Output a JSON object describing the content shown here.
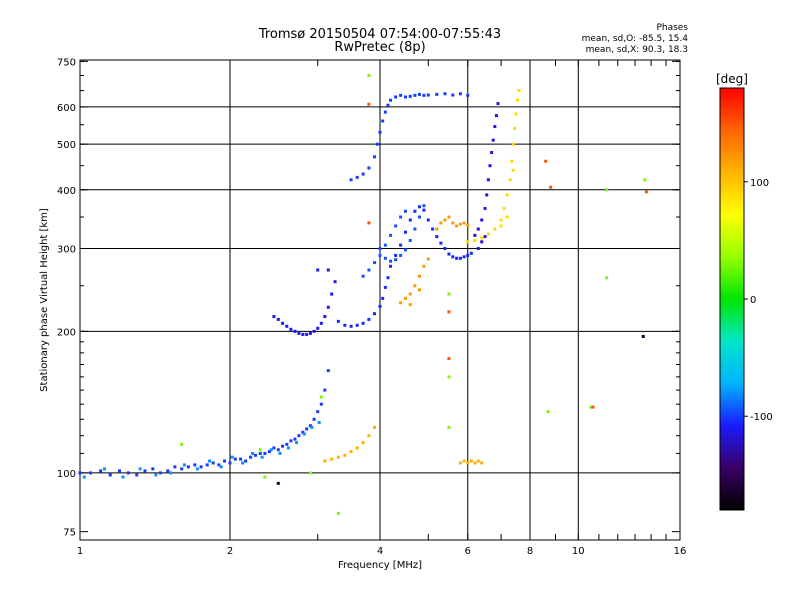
{
  "header": {
    "title_line1": "Tromsø 20150504 07:54:00-07:55:43",
    "title_line2": "RwPretec (8p)",
    "stats_heading": "Phases",
    "stats_o": "mean, sd,O: -85.5, 15.4",
    "stats_x": "mean, sd,X:  90.3, 18.3"
  },
  "colorbar": {
    "unit_label": "[deg]",
    "tick_labels": [
      "100",
      "0",
      "-100"
    ],
    "tick_values": [
      100,
      0,
      -100
    ],
    "range": [
      -180,
      180
    ],
    "colors": [
      "#000000",
      "#3a0066",
      "#1a1aff",
      "#00b4ff",
      "#00e6c8",
      "#00e600",
      "#96ff00",
      "#ffff00",
      "#ffb400",
      "#ff6400",
      "#ff0000"
    ]
  },
  "chart_data": {
    "type": "scatter",
    "xlabel": "Frequency [MHz]",
    "ylabel": "Stationary phase Virtual Height [km]",
    "x_scale": "log2",
    "y_scale": "log",
    "xlim": [
      1,
      16
    ],
    "ylim": [
      72,
      755
    ],
    "x_ticks": [
      1,
      2,
      4,
      6,
      8,
      10,
      16
    ],
    "x_tick_labels": [
      "1",
      "2",
      "4",
      "6",
      "8",
      "10",
      "16"
    ],
    "y_ticks": [
      75,
      100,
      200,
      300,
      400,
      500,
      600,
      750
    ],
    "y_tick_labels": [
      "75",
      "100",
      "200",
      "300",
      "400",
      "500",
      "600",
      "750"
    ],
    "grid": true,
    "legend": "colorbar-right",
    "series": [
      {
        "phase": -100,
        "points": [
          [
            1.0,
            100
          ],
          [
            1.05,
            100
          ],
          [
            1.1,
            101
          ],
          [
            1.15,
            99
          ],
          [
            1.2,
            101
          ],
          [
            1.25,
            100
          ],
          [
            1.3,
            99
          ],
          [
            1.35,
            101
          ],
          [
            1.4,
            102
          ],
          [
            1.45,
            100
          ],
          [
            1.5,
            101
          ],
          [
            1.55,
            103
          ],
          [
            1.6,
            102
          ],
          [
            1.65,
            103
          ],
          [
            1.7,
            104
          ],
          [
            1.75,
            103
          ],
          [
            1.8,
            104
          ],
          [
            1.85,
            105
          ],
          [
            1.9,
            104
          ],
          [
            1.95,
            106
          ],
          [
            2.0,
            105
          ],
          [
            2.05,
            107
          ],
          [
            2.1,
            107
          ],
          [
            2.15,
            106
          ],
          [
            2.2,
            108
          ],
          [
            2.25,
            109
          ],
          [
            2.3,
            110
          ],
          [
            2.35,
            110
          ],
          [
            2.4,
            111
          ],
          [
            2.45,
            113
          ],
          [
            2.5,
            112
          ],
          [
            2.55,
            114
          ],
          [
            2.6,
            115
          ],
          [
            2.65,
            117
          ],
          [
            2.7,
            118
          ],
          [
            2.75,
            120
          ],
          [
            2.8,
            122
          ],
          [
            2.85,
            124
          ],
          [
            2.9,
            126
          ],
          [
            2.95,
            130
          ],
          [
            3.0,
            135
          ],
          [
            3.05,
            140
          ],
          [
            3.1,
            150
          ],
          [
            3.15,
            165
          ]
        ]
      },
      {
        "phase": -80,
        "points": [
          [
            1.02,
            98
          ],
          [
            1.12,
            102
          ],
          [
            1.22,
            98
          ],
          [
            1.32,
            102
          ],
          [
            1.42,
            99
          ],
          [
            1.52,
            100
          ],
          [
            1.62,
            104
          ],
          [
            1.72,
            102
          ],
          [
            1.82,
            106
          ],
          [
            1.92,
            103
          ],
          [
            2.02,
            108
          ],
          [
            2.12,
            105
          ],
          [
            2.22,
            110
          ],
          [
            2.32,
            108
          ],
          [
            2.42,
            112
          ],
          [
            2.52,
            110
          ],
          [
            2.62,
            113
          ],
          [
            2.72,
            116
          ],
          [
            2.82,
            121
          ],
          [
            2.92,
            125
          ],
          [
            3.02,
            128
          ]
        ]
      },
      {
        "phase": -110,
        "points": [
          [
            2.45,
            215
          ],
          [
            2.5,
            212
          ],
          [
            2.55,
            208
          ],
          [
            2.6,
            205
          ],
          [
            2.65,
            202
          ],
          [
            2.7,
            200
          ],
          [
            2.75,
            198
          ],
          [
            2.8,
            197
          ],
          [
            2.85,
            197
          ],
          [
            2.9,
            198
          ],
          [
            2.95,
            200
          ],
          [
            3.0,
            203
          ],
          [
            3.05,
            208
          ],
          [
            3.1,
            215
          ],
          [
            3.15,
            225
          ],
          [
            3.2,
            240
          ],
          [
            3.25,
            255
          ],
          [
            3.15,
            270
          ],
          [
            3.0,
            270
          ]
        ]
      },
      {
        "phase": -105,
        "points": [
          [
            3.3,
            210
          ],
          [
            3.4,
            206
          ],
          [
            3.5,
            205
          ],
          [
            3.6,
            206
          ],
          [
            3.7,
            208
          ],
          [
            3.8,
            212
          ],
          [
            3.9,
            218
          ],
          [
            4.0,
            226
          ],
          [
            4.05,
            235
          ],
          [
            4.1,
            248
          ],
          [
            4.15,
            260
          ],
          [
            4.2,
            275
          ],
          [
            4.3,
            290
          ],
          [
            4.4,
            305
          ],
          [
            4.5,
            325
          ],
          [
            4.6,
            345
          ],
          [
            4.7,
            360
          ],
          [
            4.8,
            368
          ],
          [
            4.9,
            362
          ],
          [
            5.0,
            345
          ],
          [
            5.1,
            330
          ],
          [
            5.2,
            318
          ],
          [
            5.3,
            308
          ],
          [
            5.4,
            300
          ],
          [
            5.5,
            292
          ],
          [
            5.6,
            288
          ],
          [
            5.7,
            286
          ],
          [
            5.8,
            286
          ],
          [
            5.9,
            288
          ],
          [
            6.0,
            290
          ],
          [
            6.1,
            293
          ]
        ]
      },
      {
        "phase": -95,
        "points": [
          [
            4.0,
            290
          ],
          [
            4.1,
            286
          ],
          [
            4.2,
            282
          ],
          [
            4.3,
            284
          ],
          [
            4.4,
            290
          ],
          [
            4.5,
            298
          ],
          [
            4.6,
            312
          ],
          [
            4.7,
            330
          ],
          [
            4.8,
            350
          ],
          [
            4.9,
            370
          ],
          [
            4.0,
            300
          ],
          [
            4.1,
            305
          ],
          [
            4.2,
            320
          ],
          [
            4.3,
            335
          ],
          [
            4.4,
            350
          ],
          [
            4.5,
            360
          ],
          [
            3.9,
            280
          ],
          [
            3.8,
            270
          ],
          [
            3.7,
            262
          ]
        ]
      },
      {
        "phase": -100,
        "points": [
          [
            3.5,
            420
          ],
          [
            3.6,
            425
          ],
          [
            3.7,
            432
          ],
          [
            3.8,
            445
          ],
          [
            3.9,
            470
          ],
          [
            3.95,
            500
          ],
          [
            4.0,
            530
          ],
          [
            4.05,
            560
          ],
          [
            4.1,
            585
          ],
          [
            4.15,
            605
          ],
          [
            4.2,
            620
          ],
          [
            4.3,
            630
          ],
          [
            4.4,
            635
          ],
          [
            4.5,
            630
          ],
          [
            4.6,
            632
          ],
          [
            4.7,
            635
          ],
          [
            4.8,
            638
          ],
          [
            4.9,
            635
          ],
          [
            5.0,
            636
          ],
          [
            5.2,
            638
          ],
          [
            5.4,
            640
          ],
          [
            5.6,
            636
          ],
          [
            5.8,
            640
          ],
          [
            6.0,
            635
          ]
        ]
      },
      {
        "phase": -115,
        "points": [
          [
            6.2,
            320
          ],
          [
            6.3,
            330
          ],
          [
            6.4,
            345
          ],
          [
            6.5,
            365
          ],
          [
            6.55,
            390
          ],
          [
            6.6,
            420
          ],
          [
            6.65,
            450
          ],
          [
            6.7,
            480
          ],
          [
            6.75,
            510
          ],
          [
            6.8,
            545
          ],
          [
            6.85,
            575
          ],
          [
            6.9,
            610
          ],
          [
            6.3,
            300
          ],
          [
            6.4,
            310
          ],
          [
            6.5,
            318
          ]
        ]
      },
      {
        "phase": 90,
        "points": [
          [
            6.0,
            310
          ],
          [
            6.2,
            312
          ],
          [
            6.4,
            316
          ],
          [
            6.6,
            322
          ],
          [
            6.8,
            330
          ],
          [
            7.0,
            345
          ],
          [
            7.1,
            365
          ],
          [
            7.2,
            390
          ],
          [
            7.3,
            420
          ],
          [
            7.35,
            460
          ],
          [
            7.4,
            500
          ],
          [
            7.45,
            540
          ],
          [
            7.5,
            580
          ],
          [
            7.55,
            620
          ],
          [
            7.6,
            650
          ],
          [
            7.0,
            335
          ],
          [
            7.2,
            350
          ],
          [
            7.4,
            440
          ]
        ]
      },
      {
        "phase": 120,
        "points": [
          [
            4.4,
            230
          ],
          [
            4.5,
            235
          ],
          [
            4.6,
            240
          ],
          [
            4.7,
            250
          ],
          [
            4.8,
            262
          ],
          [
            4.9,
            275
          ],
          [
            5.0,
            285
          ],
          [
            4.6,
            228
          ],
          [
            4.8,
            245
          ],
          [
            5.4,
            345
          ],
          [
            5.5,
            350
          ],
          [
            5.6,
            340
          ],
          [
            5.7,
            335
          ],
          [
            5.8,
            338
          ],
          [
            5.9,
            340
          ],
          [
            6.0,
            336
          ],
          [
            5.2,
            330
          ],
          [
            5.3,
            340
          ]
        ]
      },
      {
        "phase": 110,
        "points": [
          [
            3.1,
            106
          ],
          [
            3.2,
            107
          ],
          [
            3.3,
            108
          ],
          [
            3.4,
            109
          ],
          [
            3.5,
            111
          ],
          [
            3.6,
            113
          ],
          [
            3.7,
            116
          ],
          [
            3.8,
            120
          ],
          [
            3.9,
            125
          ],
          [
            5.8,
            105
          ],
          [
            5.9,
            106
          ],
          [
            6.0,
            105
          ],
          [
            6.1,
            106
          ],
          [
            6.2,
            105
          ],
          [
            6.3,
            106
          ],
          [
            6.4,
            105
          ]
        ]
      },
      {
        "phase": 30,
        "points": [
          [
            1.6,
            115
          ],
          [
            2.3,
            112
          ],
          [
            2.35,
            98
          ],
          [
            2.9,
            100
          ],
          [
            3.05,
            145
          ],
          [
            3.3,
            82
          ],
          [
            3.8,
            700
          ],
          [
            8.7,
            135
          ],
          [
            10.6,
            138
          ],
          [
            11.4,
            260
          ],
          [
            13.6,
            420
          ],
          [
            11.4,
            400
          ],
          [
            5.5,
            240
          ],
          [
            5.5,
            125
          ],
          [
            5.5,
            160
          ]
        ]
      },
      {
        "phase": 150,
        "points": [
          [
            3.8,
            340
          ],
          [
            3.8,
            608
          ],
          [
            5.5,
            220
          ],
          [
            5.5,
            175
          ],
          [
            8.6,
            460
          ],
          [
            8.8,
            405
          ],
          [
            10.7,
            138
          ],
          [
            13.7,
            396
          ]
        ]
      },
      {
        "phase": -160,
        "points": [
          [
            2.5,
            95
          ],
          [
            13.5,
            195
          ]
        ]
      }
    ]
  }
}
